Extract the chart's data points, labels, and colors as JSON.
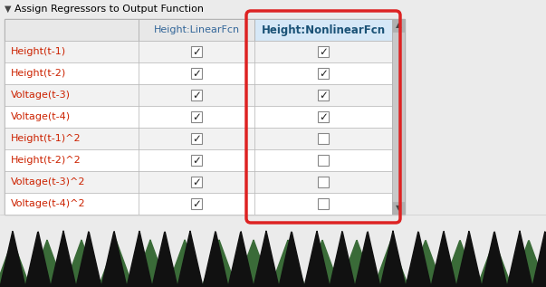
{
  "title": "Assign Regressors to Output Function",
  "col_headers": [
    "",
    "Height:LinearFcn",
    "Height:NonlinearFcn"
  ],
  "regressors": [
    "Height(t-1)",
    "Height(t-2)",
    "Voltage(t-3)",
    "Voltage(t-4)",
    "Height(t-1)^2",
    "Height(t-2)^2",
    "Voltage(t-3)^2",
    "Voltage(t-4)^2"
  ],
  "linear_checked": [
    true,
    true,
    true,
    true,
    true,
    true,
    true,
    true
  ],
  "nonlinear_checked": [
    true,
    true,
    true,
    true,
    false,
    false,
    false,
    false
  ],
  "bg_color": "#ebebeb",
  "table_bg": "#ffffff",
  "header_bg_col2": "#d6e8f7",
  "header_bg_col01": "#e8e8e8",
  "row_even_color": "#f2f2f2",
  "row_odd_color": "#ffffff",
  "border_color": "#b0b0b0",
  "title_color": "#000000",
  "regressor_color": "#cc2200",
  "header_color_linear": "#336699",
  "header_color_nonlinear": "#1a5276",
  "check_color": "#222222",
  "red_border_color": "#dd2222",
  "scrollbar_bg": "#c8c8c8",
  "scrollbar_btn": "#b0b0b0",
  "fig_width": 6.03,
  "fig_height": 3.17,
  "zigzag_black": "#111111",
  "zigzag_green": "#3a6b38"
}
